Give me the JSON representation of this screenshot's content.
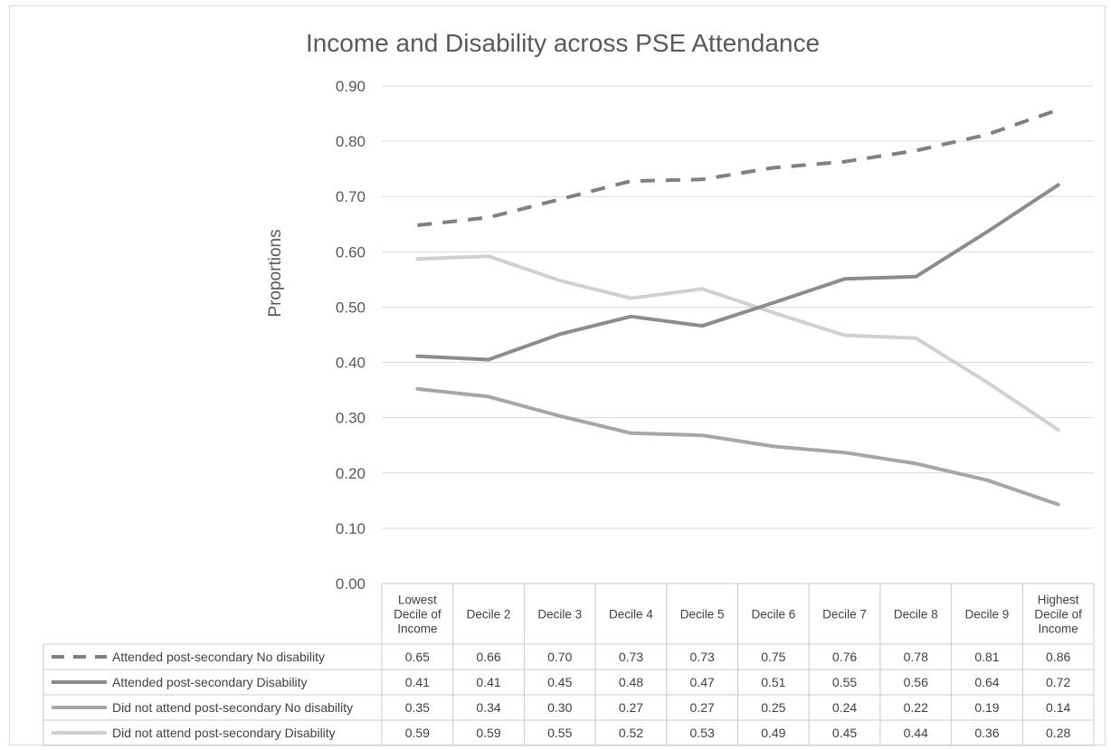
{
  "chart_data": {
    "type": "line",
    "title": "Income and Disability across PSE Attendance",
    "xlabel": "",
    "ylabel": "Proportions",
    "ylim": [
      0,
      0.9
    ],
    "yticks": [
      "0.00",
      "0.10",
      "0.20",
      "0.30",
      "0.40",
      "0.50",
      "0.60",
      "0.70",
      "0.80",
      "0.90"
    ],
    "grid": true,
    "legend": "data-table",
    "categories": [
      "Lowest Decile of Income",
      "Decile 2",
      "Decile 3",
      "Decile 4",
      "Decile 5",
      "Decile 6",
      "Decile 7",
      "Decile 8",
      "Decile 9",
      "Highest Decile of Income"
    ],
    "series": [
      {
        "name": "Attended post-secondary No disability",
        "color": "#808080",
        "dash": "dashed",
        "values": [
          0.648,
          0.662,
          0.695,
          0.728,
          0.731,
          0.752,
          0.763,
          0.783,
          0.812,
          0.857
        ],
        "labels": [
          "0.65",
          "0.66",
          "0.70",
          "0.73",
          "0.73",
          "0.75",
          "0.76",
          "0.78",
          "0.81",
          "0.86"
        ]
      },
      {
        "name": "Attended post-secondary Disability",
        "color": "#8c8c8c",
        "dash": "solid",
        "values": [
          0.411,
          0.405,
          0.451,
          0.483,
          0.466,
          0.508,
          0.551,
          0.555,
          0.636,
          0.721
        ],
        "labels": [
          "0.41",
          "0.41",
          "0.45",
          "0.48",
          "0.47",
          "0.51",
          "0.55",
          "0.56",
          "0.64",
          "0.72"
        ]
      },
      {
        "name": "Did not attend post-secondary No disability",
        "color": "#a6a6a6",
        "dash": "solid",
        "values": [
          0.352,
          0.338,
          0.303,
          0.272,
          0.268,
          0.248,
          0.237,
          0.217,
          0.187,
          0.143
        ],
        "labels": [
          "0.35",
          "0.34",
          "0.30",
          "0.27",
          "0.27",
          "0.25",
          "0.24",
          "0.22",
          "0.19",
          "0.14"
        ]
      },
      {
        "name": "Did not attend post-secondary Disability",
        "color": "#d0d0d0",
        "dash": "solid",
        "values": [
          0.587,
          0.592,
          0.548,
          0.516,
          0.533,
          0.49,
          0.449,
          0.444,
          0.364,
          0.278
        ],
        "labels": [
          "0.59",
          "0.59",
          "0.55",
          "0.52",
          "0.53",
          "0.49",
          "0.45",
          "0.44",
          "0.36",
          "0.28"
        ]
      }
    ]
  }
}
